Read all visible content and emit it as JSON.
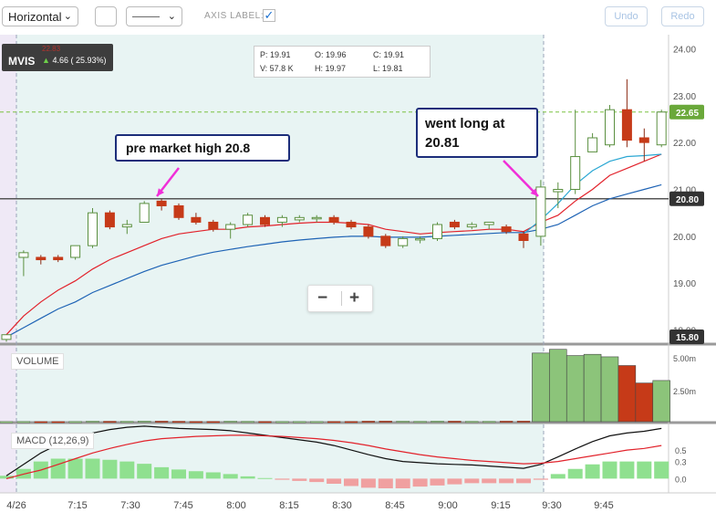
{
  "toolbar": {
    "orientation_select": "Horizontal",
    "line_style_select": "———",
    "axis_label_text": "AXIS LABEL:",
    "axis_label_checked": true,
    "undo_label": "Undo",
    "redo_label": "Redo"
  },
  "symbol": {
    "ticker": "MVIS",
    "top_value": "22.83",
    "change_text": "4.66 ( 25.93%)"
  },
  "ohlc_box": {
    "p": "P: 19.91",
    "o": "O: 19.96",
    "c": "C: 19.91",
    "v": "V: 57.8 K",
    "h": "H: 19.97",
    "l": "L: 19.81"
  },
  "annotations": {
    "premarket": "pre market high 20.8",
    "long_line1": "went long at",
    "long_line2": "20.81"
  },
  "zoom": {
    "minus": "−",
    "plus": "+"
  },
  "colors": {
    "up": "#8cc47a",
    "down": "#c63a18",
    "ema_fast": "#e2222b",
    "ema_slow": "#1e63b5",
    "ema_mid": "#2aa7d3",
    "macd_line": "#111111",
    "signal_line": "#e2222b",
    "hist_pos": "#8fe08f",
    "hist_neg": "#f0a0a0",
    "arrow": "#f02fd8",
    "level_line": "#555555",
    "dash_green": "#7cc242"
  },
  "chart_data": {
    "type": "candlestick",
    "price_axis": {
      "ticks": [
        "24.00",
        "23.00",
        "22.00",
        "21.00",
        "20.00",
        "19.00",
        "18.00"
      ],
      "range": [
        17.7,
        24.3
      ]
    },
    "price_tags": {
      "last": "22.65",
      "level": "20.80",
      "low": "15.80"
    },
    "x_ticks": [
      "4/26",
      "7:15",
      "7:30",
      "7:45",
      "8:00",
      "8:15",
      "8:30",
      "8:45",
      "9:00",
      "9:15",
      "9:30",
      "9:45"
    ],
    "candles": [
      {
        "o": 17.8,
        "h": 17.9,
        "l": 17.75,
        "c": 17.9
      },
      {
        "o": 19.55,
        "h": 19.7,
        "l": 19.15,
        "c": 19.65
      },
      {
        "o": 19.55,
        "h": 19.6,
        "l": 19.4,
        "c": 19.5
      },
      {
        "o": 19.55,
        "h": 19.6,
        "l": 19.45,
        "c": 19.5
      },
      {
        "o": 19.55,
        "h": 19.8,
        "l": 19.5,
        "c": 19.8
      },
      {
        "o": 19.8,
        "h": 20.6,
        "l": 19.75,
        "c": 20.5
      },
      {
        "o": 20.5,
        "h": 20.55,
        "l": 20.15,
        "c": 20.2
      },
      {
        "o": 20.2,
        "h": 20.35,
        "l": 20.05,
        "c": 20.25
      },
      {
        "o": 20.3,
        "h": 20.75,
        "l": 20.3,
        "c": 20.7
      },
      {
        "o": 20.75,
        "h": 20.8,
        "l": 20.55,
        "c": 20.65
      },
      {
        "o": 20.65,
        "h": 20.7,
        "l": 20.35,
        "c": 20.4
      },
      {
        "o": 20.4,
        "h": 20.5,
        "l": 20.25,
        "c": 20.3
      },
      {
        "o": 20.3,
        "h": 20.35,
        "l": 20.1,
        "c": 20.15
      },
      {
        "o": 20.15,
        "h": 20.3,
        "l": 19.95,
        "c": 20.25
      },
      {
        "o": 20.25,
        "h": 20.5,
        "l": 20.2,
        "c": 20.45
      },
      {
        "o": 20.4,
        "h": 20.45,
        "l": 20.2,
        "c": 20.25
      },
      {
        "o": 20.3,
        "h": 20.45,
        "l": 20.2,
        "c": 20.4
      },
      {
        "o": 20.35,
        "h": 20.45,
        "l": 20.3,
        "c": 20.4
      },
      {
        "o": 20.4,
        "h": 20.45,
        "l": 20.3,
        "c": 20.4
      },
      {
        "o": 20.4,
        "h": 20.45,
        "l": 20.25,
        "c": 20.3
      },
      {
        "o": 20.3,
        "h": 20.35,
        "l": 20.15,
        "c": 20.2
      },
      {
        "o": 20.2,
        "h": 20.25,
        "l": 19.95,
        "c": 20.0
      },
      {
        "o": 20.0,
        "h": 20.05,
        "l": 19.75,
        "c": 19.8
      },
      {
        "o": 19.8,
        "h": 20.0,
        "l": 19.75,
        "c": 19.95
      },
      {
        "o": 19.95,
        "h": 20.0,
        "l": 19.85,
        "c": 19.95
      },
      {
        "o": 19.95,
        "h": 20.3,
        "l": 19.9,
        "c": 20.25
      },
      {
        "o": 20.3,
        "h": 20.35,
        "l": 20.15,
        "c": 20.2
      },
      {
        "o": 20.2,
        "h": 20.3,
        "l": 20.15,
        "c": 20.25
      },
      {
        "o": 20.25,
        "h": 20.3,
        "l": 20.15,
        "c": 20.3
      },
      {
        "o": 20.2,
        "h": 20.25,
        "l": 20.05,
        "c": 20.1
      },
      {
        "o": 20.05,
        "h": 20.1,
        "l": 19.75,
        "c": 19.91
      },
      {
        "o": 20.0,
        "h": 21.2,
        "l": 19.8,
        "c": 21.05
      },
      {
        "o": 20.95,
        "h": 21.15,
        "l": 20.6,
        "c": 21.0
      },
      {
        "o": 21.0,
        "h": 22.7,
        "l": 20.9,
        "c": 21.7
      },
      {
        "o": 21.8,
        "h": 22.2,
        "l": 21.8,
        "c": 22.1
      },
      {
        "o": 21.95,
        "h": 22.8,
        "l": 21.9,
        "c": 22.7
      },
      {
        "o": 22.7,
        "h": 23.35,
        "l": 21.9,
        "c": 22.05
      },
      {
        "o": 22.1,
        "h": 22.3,
        "l": 21.6,
        "c": 22.0
      },
      {
        "o": 21.95,
        "h": 22.7,
        "l": 21.9,
        "c": 22.65
      }
    ],
    "ema_fast": [
      17.9,
      18.3,
      18.6,
      18.85,
      19.05,
      19.3,
      19.5,
      19.65,
      19.8,
      19.95,
      20.05,
      20.1,
      20.15,
      20.15,
      20.2,
      20.22,
      20.25,
      20.28,
      20.3,
      20.3,
      20.28,
      20.25,
      20.15,
      20.1,
      20.05,
      20.08,
      20.1,
      20.12,
      20.15,
      20.15,
      20.1,
      20.3,
      20.45,
      20.75,
      21.0,
      21.3,
      21.45,
      21.6,
      21.75
    ],
    "ema_slow": [
      17.85,
      18.05,
      18.25,
      18.45,
      18.6,
      18.8,
      18.95,
      19.1,
      19.25,
      19.38,
      19.48,
      19.58,
      19.66,
      19.72,
      19.78,
      19.83,
      19.88,
      19.92,
      19.95,
      19.98,
      20.0,
      20.0,
      19.98,
      19.98,
      19.98,
      20.0,
      20.02,
      20.04,
      20.06,
      20.08,
      20.08,
      20.15,
      20.25,
      20.45,
      20.65,
      20.8,
      20.9,
      21.0,
      21.1
    ],
    "ema_mid": [
      null,
      null,
      null,
      null,
      null,
      null,
      null,
      null,
      null,
      null,
      null,
      null,
      null,
      null,
      null,
      null,
      null,
      null,
      null,
      null,
      null,
      null,
      null,
      null,
      null,
      null,
      null,
      null,
      null,
      null,
      20.05,
      20.35,
      20.7,
      21.1,
      21.4,
      21.6,
      21.7,
      21.72,
      21.75
    ],
    "volume": {
      "label": "VOLUME",
      "ticks": [
        "5.00m",
        "2.50m"
      ],
      "max": 6.0,
      "values": [
        0.02,
        0.03,
        0.02,
        0.02,
        0.03,
        0.05,
        0.04,
        0.04,
        0.06,
        0.05,
        0.04,
        0.03,
        0.03,
        0.05,
        0.04,
        0.03,
        0.03,
        0.03,
        0.03,
        0.03,
        0.03,
        0.05,
        0.06,
        0.05,
        0.04,
        0.06,
        0.05,
        0.04,
        0.04,
        0.05,
        0.06,
        5.5,
        5.8,
        5.3,
        5.4,
        5.2,
        4.5,
        3.1,
        3.3
      ]
    },
    "macd": {
      "label": "MACD (12,26,9)",
      "ticks": [
        "0.5",
        "0.3",
        "0.0"
      ],
      "range": [
        -0.25,
        0.95
      ],
      "macd": [
        0.05,
        0.25,
        0.45,
        0.6,
        0.7,
        0.8,
        0.86,
        0.9,
        0.92,
        0.9,
        0.88,
        0.87,
        0.86,
        0.84,
        0.8,
        0.76,
        0.72,
        0.68,
        0.64,
        0.58,
        0.5,
        0.42,
        0.35,
        0.3,
        0.28,
        0.26,
        0.25,
        0.24,
        0.22,
        0.2,
        0.18,
        0.25,
        0.38,
        0.52,
        0.65,
        0.75,
        0.8,
        0.83,
        0.88
      ],
      "signal": [
        0.0,
        0.08,
        0.15,
        0.25,
        0.35,
        0.45,
        0.53,
        0.6,
        0.66,
        0.7,
        0.72,
        0.74,
        0.75,
        0.76,
        0.76,
        0.75,
        0.74,
        0.72,
        0.7,
        0.67,
        0.63,
        0.58,
        0.52,
        0.47,
        0.42,
        0.38,
        0.35,
        0.32,
        0.3,
        0.28,
        0.26,
        0.27,
        0.3,
        0.35,
        0.4,
        0.45,
        0.5,
        0.53,
        0.58
      ],
      "hist": [
        0.05,
        0.17,
        0.3,
        0.35,
        0.35,
        0.35,
        0.33,
        0.3,
        0.26,
        0.2,
        0.16,
        0.13,
        0.11,
        0.08,
        0.04,
        0.01,
        -0.02,
        -0.04,
        -0.06,
        -0.09,
        -0.13,
        -0.16,
        -0.17,
        -0.17,
        -0.14,
        -0.12,
        -0.1,
        -0.08,
        -0.08,
        -0.08,
        -0.08,
        -0.02,
        0.08,
        0.17,
        0.25,
        0.3,
        0.3,
        0.3,
        0.3
      ]
    }
  }
}
